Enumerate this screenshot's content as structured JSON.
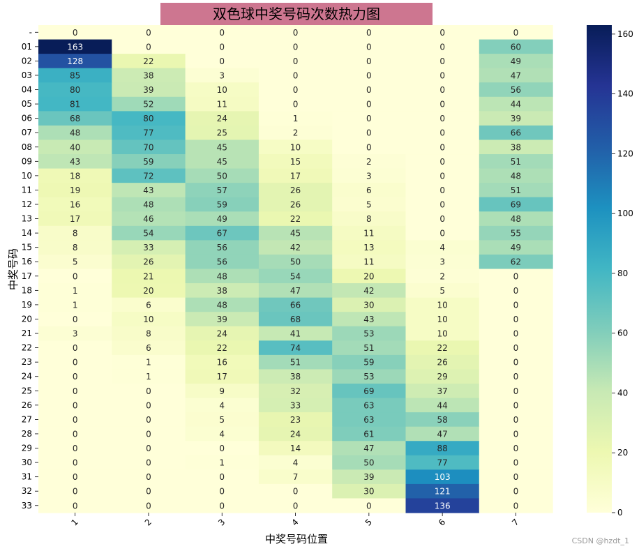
{
  "chart_data": {
    "type": "heatmap",
    "title": "双色球中奖号码次数热力图",
    "xlabel": "中奖号码位置",
    "ylabel": "中奖号码",
    "x_categories": [
      "1",
      "2",
      "3",
      "4",
      "5",
      "6",
      "7"
    ],
    "y_categories": [
      "-",
      "01",
      "02",
      "03",
      "04",
      "05",
      "06",
      "07",
      "08",
      "09",
      "10",
      "11",
      "12",
      "13",
      "14",
      "15",
      "16",
      "17",
      "18",
      "19",
      "20",
      "21",
      "22",
      "23",
      "24",
      "25",
      "26",
      "27",
      "28",
      "29",
      "30",
      "31",
      "32",
      "33"
    ],
    "values": [
      [
        0,
        0,
        0,
        0,
        0,
        0,
        0
      ],
      [
        163,
        0,
        0,
        0,
        0,
        0,
        60
      ],
      [
        128,
        22,
        0,
        0,
        0,
        0,
        49
      ],
      [
        85,
        38,
        3,
        0,
        0,
        0,
        47
      ],
      [
        80,
        39,
        10,
        0,
        0,
        0,
        56
      ],
      [
        81,
        52,
        11,
        0,
        0,
        0,
        44
      ],
      [
        68,
        80,
        24,
        1,
        0,
        0,
        39
      ],
      [
        48,
        77,
        25,
        2,
        0,
        0,
        66
      ],
      [
        40,
        70,
        45,
        10,
        0,
        0,
        38
      ],
      [
        43,
        59,
        45,
        15,
        2,
        0,
        51
      ],
      [
        18,
        72,
        50,
        17,
        3,
        0,
        48
      ],
      [
        19,
        43,
        57,
        26,
        6,
        0,
        51
      ],
      [
        16,
        48,
        59,
        26,
        5,
        0,
        69
      ],
      [
        17,
        46,
        49,
        22,
        8,
        0,
        48
      ],
      [
        8,
        54,
        67,
        45,
        11,
        0,
        55
      ],
      [
        8,
        33,
        56,
        42,
        13,
        4,
        49
      ],
      [
        5,
        26,
        56,
        50,
        11,
        3,
        62
      ],
      [
        0,
        21,
        48,
        54,
        20,
        2,
        0
      ],
      [
        1,
        20,
        38,
        47,
        42,
        5,
        0
      ],
      [
        1,
        6,
        48,
        66,
        30,
        10,
        0
      ],
      [
        0,
        10,
        39,
        68,
        43,
        10,
        0
      ],
      [
        3,
        8,
        24,
        41,
        53,
        10,
        0
      ],
      [
        0,
        6,
        22,
        74,
        51,
        22,
        0
      ],
      [
        0,
        1,
        16,
        51,
        59,
        26,
        0
      ],
      [
        0,
        1,
        17,
        38,
        53,
        29,
        0
      ],
      [
        0,
        0,
        9,
        32,
        69,
        37,
        0
      ],
      [
        0,
        0,
        4,
        33,
        63,
        44,
        0
      ],
      [
        0,
        0,
        5,
        23,
        63,
        58,
        0
      ],
      [
        0,
        0,
        4,
        24,
        61,
        47,
        0
      ],
      [
        0,
        0,
        0,
        14,
        47,
        88,
        0
      ],
      [
        0,
        0,
        1,
        4,
        50,
        77,
        0
      ],
      [
        0,
        0,
        0,
        7,
        39,
        103,
        0
      ],
      [
        0,
        0,
        0,
        0,
        30,
        121,
        0
      ],
      [
        0,
        0,
        0,
        0,
        0,
        136,
        0
      ]
    ],
    "colormap": "YlGnBu",
    "vmin": 0,
    "vmax": 163,
    "colorbar_ticks": [
      "0",
      "20",
      "40",
      "60",
      "80",
      "100",
      "120",
      "140",
      "160"
    ],
    "annot": true,
    "title_background": "#cd7690"
  },
  "watermark": "CSDN @hzdt_1"
}
